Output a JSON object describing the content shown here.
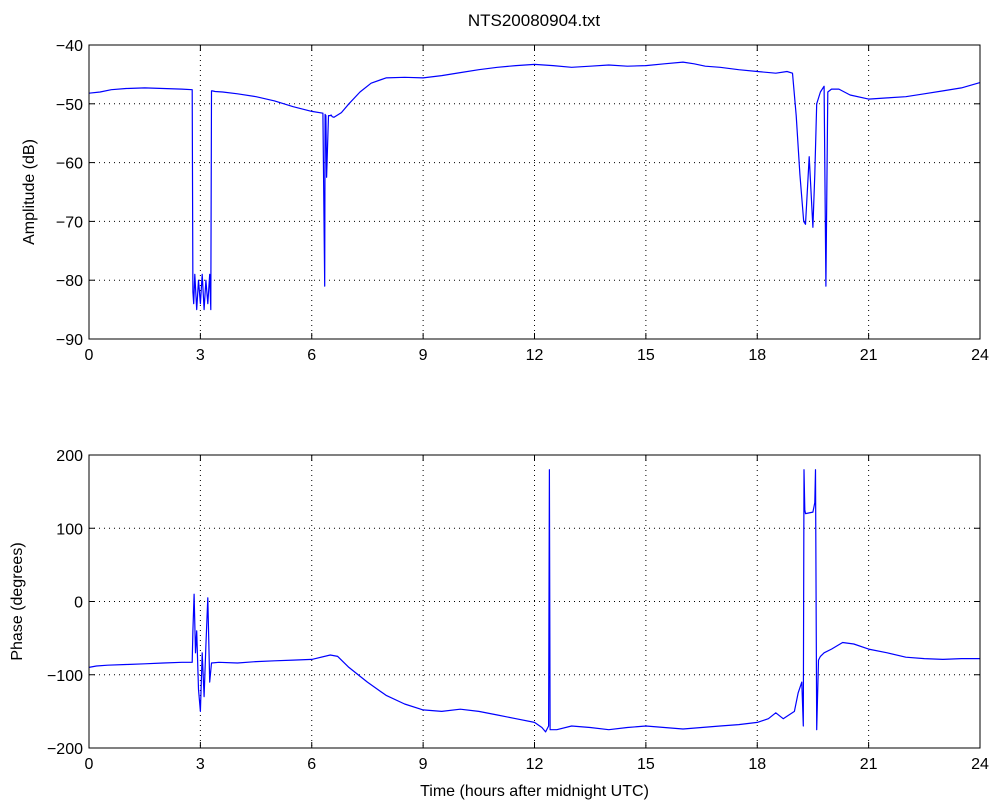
{
  "figure": {
    "title": "NTS20080904.txt"
  },
  "colors": {
    "line": "#0000ff",
    "axes": "#000000",
    "grid": "#000000",
    "background": "#ffffff"
  },
  "chart_data": [
    {
      "type": "line",
      "title": "NTS20080904.txt",
      "xlabel": "",
      "ylabel": "Amplitude (dB)",
      "xlim": [
        0,
        24
      ],
      "ylim": [
        -90,
        -40
      ],
      "xticks": [
        0,
        3,
        6,
        9,
        12,
        15,
        18,
        21,
        24
      ],
      "yticks": [
        -90,
        -80,
        -70,
        -60,
        -50,
        -40
      ],
      "grid": true,
      "series": [
        {
          "x": [
            0,
            0.3,
            0.6,
            1.0,
            1.5,
            2.0,
            2.5,
            2.78,
            2.8,
            2.82,
            2.85,
            2.9,
            2.95,
            3.0,
            3.05,
            3.1,
            3.15,
            3.2,
            3.25,
            3.28,
            3.3,
            3.32,
            3.4,
            3.6,
            4.0,
            4.5,
            5.0,
            5.5,
            6.0,
            6.3,
            6.35,
            6.36,
            6.38,
            6.4,
            6.45,
            6.5,
            6.52,
            6.55,
            6.6,
            6.8,
            7.0,
            7.3,
            7.6,
            8.0,
            8.5,
            9.0,
            9.5,
            10.0,
            10.5,
            11.0,
            11.5,
            12.0,
            12.5,
            13.0,
            13.5,
            14.0,
            14.5,
            15.0,
            15.5,
            16.0,
            16.3,
            16.6,
            17.0,
            17.5,
            18.0,
            18.5,
            18.8,
            18.95,
            19.05,
            19.15,
            19.25,
            19.3,
            19.4,
            19.5,
            19.55,
            19.6,
            19.7,
            19.8,
            19.85,
            19.9,
            20.0,
            20.2,
            20.5,
            21.0,
            21.5,
            22.0,
            22.5,
            23.0,
            23.5,
            24.0
          ],
          "values": [
            -48.2,
            -48.0,
            -47.6,
            -47.4,
            -47.3,
            -47.4,
            -47.5,
            -47.6,
            -82,
            -84,
            -79,
            -85,
            -80,
            -84,
            -79,
            -85,
            -80,
            -84,
            -79,
            -85,
            -47.8,
            -47.8,
            -47.9,
            -48.0,
            -48.3,
            -48.8,
            -49.5,
            -50.5,
            -51.3,
            -51.6,
            -81,
            -51.8,
            -52.0,
            -62.5,
            -52.0,
            -52.0,
            -51.9,
            -52.2,
            -52.3,
            -51.5,
            -50.0,
            -48.0,
            -46.5,
            -45.6,
            -45.5,
            -45.6,
            -45.2,
            -44.7,
            -44.2,
            -43.8,
            -43.5,
            -43.3,
            -43.5,
            -43.8,
            -43.6,
            -43.4,
            -43.6,
            -43.5,
            -43.2,
            -42.9,
            -43.2,
            -43.6,
            -43.8,
            -44.2,
            -44.5,
            -44.8,
            -44.5,
            -44.8,
            -52.0,
            -62.0,
            -70.0,
            -70.5,
            -59.0,
            -71.0,
            -62.0,
            -50.0,
            -48.0,
            -47.0,
            -81,
            -48.0,
            -47.5,
            -47.5,
            -48.5,
            -49.2,
            -49.0,
            -48.8,
            -48.3,
            -47.8,
            -47.3,
            -46.4
          ]
        }
      ]
    },
    {
      "type": "line",
      "title": "",
      "xlabel": "Time (hours after midnight UTC)",
      "ylabel": "Phase (degrees)",
      "xlim": [
        0,
        24
      ],
      "ylim": [
        -200,
        200
      ],
      "xticks": [
        0,
        3,
        6,
        9,
        12,
        15,
        18,
        21,
        24
      ],
      "yticks": [
        -200,
        -100,
        0,
        100,
        200
      ],
      "grid": true,
      "series": [
        {
          "x": [
            0,
            0.2,
            0.5,
            1.0,
            1.5,
            2.0,
            2.5,
            2.78,
            2.8,
            2.83,
            2.87,
            2.9,
            2.95,
            3.0,
            3.05,
            3.1,
            3.15,
            3.2,
            3.25,
            3.3,
            3.5,
            4.0,
            4.5,
            5.0,
            5.5,
            6.0,
            6.5,
            6.7,
            7.0,
            7.5,
            8.0,
            8.5,
            9.0,
            9.5,
            10.0,
            10.5,
            11.0,
            11.5,
            12.0,
            12.2,
            12.3,
            12.38,
            12.4,
            12.42,
            12.45,
            12.6,
            13.0,
            13.5,
            14.0,
            14.5,
            15.0,
            15.5,
            16.0,
            16.5,
            17.0,
            17.5,
            18.0,
            18.3,
            18.5,
            18.7,
            19.0,
            19.1,
            19.2,
            19.24,
            19.26,
            19.28,
            19.3,
            19.5,
            19.55,
            19.57,
            19.6,
            19.65,
            19.7,
            19.8,
            20.0,
            20.3,
            20.6,
            21.0,
            21.5,
            22.0,
            22.5,
            23.0,
            23.5,
            24.0
          ],
          "values": [
            -90,
            -88,
            -87,
            -86,
            -85,
            -84,
            -83,
            -83,
            -40,
            10,
            -70,
            -40,
            -120,
            -150,
            -70,
            -130,
            -60,
            5,
            -110,
            -84,
            -83,
            -84,
            -82,
            -81,
            -80,
            -79,
            -73,
            -75,
            -90,
            -110,
            -128,
            -140,
            -148,
            -150,
            -147,
            -150,
            -155,
            -160,
            -165,
            -172,
            -178,
            -170,
            180,
            -175,
            -175,
            -175,
            -170,
            -172,
            -175,
            -172,
            -170,
            -172,
            -174,
            -172,
            -170,
            -168,
            -165,
            -160,
            -152,
            -160,
            -150,
            -125,
            -110,
            -170,
            180,
            125,
            120,
            122,
            135,
            180,
            -175,
            -80,
            -75,
            -70,
            -65,
            -56,
            -58,
            -65,
            -70,
            -76,
            -78,
            -79,
            -78,
            -78
          ]
        }
      ]
    }
  ]
}
